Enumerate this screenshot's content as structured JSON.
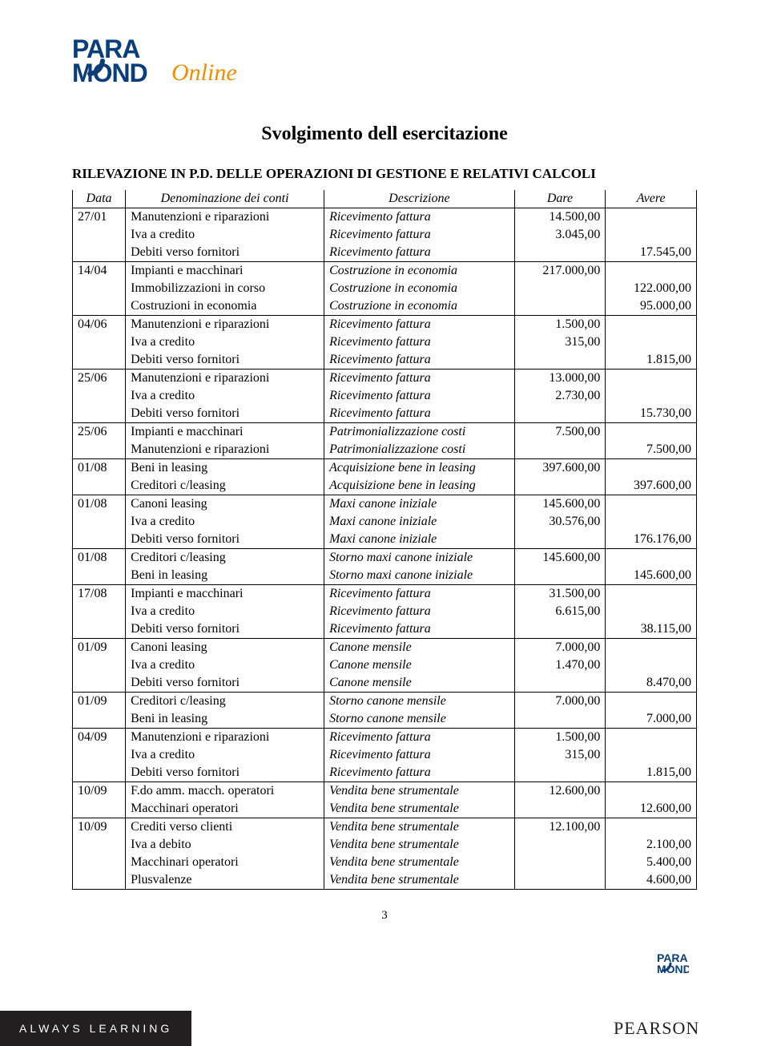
{
  "logo": {
    "line1": "PARA",
    "line2": "MOND",
    "suffix": "Online",
    "colors": {
      "blue": "#0a3e7a",
      "orange": "#f28c00"
    }
  },
  "title": "Svolgimento dell esercitazione",
  "subtitle": "RILEVAZIONE IN P.D. DELLE OPERAZIONI DI GESTIONE E RELATIVI CALCOLI",
  "columns": {
    "data": "Data",
    "denom": "Denominazione dei conti",
    "descr": "Descrizione",
    "dare": "Dare",
    "avere": "Avere"
  },
  "groups": [
    {
      "sep": true,
      "rows": [
        {
          "d": "27/01",
          "n": "Manutenzioni e riparazioni",
          "de": "Ricevimento fattura",
          "da": "14.500,00",
          "av": ""
        },
        {
          "d": "",
          "n": "Iva a credito",
          "de": "Ricevimento fattura",
          "da": "3.045,00",
          "av": ""
        },
        {
          "d": "",
          "n": "Debiti verso fornitori",
          "de": "Ricevimento fattura",
          "da": "",
          "av": "17.545,00"
        }
      ]
    },
    {
      "sep": true,
      "rows": [
        {
          "d": "14/04",
          "n": "Impianti e macchinari",
          "de": "Costruzione in economia",
          "da": "217.000,00",
          "av": ""
        },
        {
          "d": "",
          "n": "Immobilizzazioni in corso",
          "de": "Costruzione in economia",
          "da": "",
          "av": "122.000,00"
        },
        {
          "d": "",
          "n": "Costruzioni in economia",
          "de": "Costruzione in economia",
          "da": "",
          "av": "95.000,00"
        }
      ]
    },
    {
      "sep": true,
      "rows": [
        {
          "d": "04/06",
          "n": "Manutenzioni e riparazioni",
          "de": "Ricevimento fattura",
          "da": "1.500,00",
          "av": ""
        },
        {
          "d": "",
          "n": "Iva a credito",
          "de": "Ricevimento fattura",
          "da": "315,00",
          "av": ""
        },
        {
          "d": "",
          "n": "Debiti verso fornitori",
          "de": "Ricevimento fattura",
          "da": "",
          "av": "1.815,00"
        }
      ]
    },
    {
      "sep": true,
      "rows": [
        {
          "d": "25/06",
          "n": "Manutenzioni e riparazioni",
          "de": "Ricevimento fattura",
          "da": "13.000,00",
          "av": ""
        },
        {
          "d": "",
          "n": "Iva a credito",
          "de": "Ricevimento fattura",
          "da": "2.730,00",
          "av": ""
        },
        {
          "d": "",
          "n": "Debiti verso fornitori",
          "de": "Ricevimento fattura",
          "da": "",
          "av": "15.730,00"
        }
      ]
    },
    {
      "sep": true,
      "rows": [
        {
          "d": "25/06",
          "n": "Impianti e macchinari",
          "de": "Patrimonializzazione costi",
          "da": "7.500,00",
          "av": ""
        },
        {
          "d": "",
          "n": "Manutenzioni e riparazioni",
          "de": "Patrimonializzazione costi",
          "da": "",
          "av": "7.500,00"
        }
      ]
    },
    {
      "sep": true,
      "rows": [
        {
          "d": "01/08",
          "n": "Beni in leasing",
          "de": "Acquisizione bene in leasing",
          "da": "397.600,00",
          "av": ""
        },
        {
          "d": "",
          "n": "Creditori c/leasing",
          "de": "Acquisizione bene in leasing",
          "da": "",
          "av": "397.600,00"
        }
      ]
    },
    {
      "sep": true,
      "rows": [
        {
          "d": "01/08",
          "n": "Canoni leasing",
          "de": "Maxi canone iniziale",
          "da": "145.600,00",
          "av": ""
        },
        {
          "d": "",
          "n": "Iva a credito",
          "de": "Maxi canone iniziale",
          "da": "30.576,00",
          "av": ""
        },
        {
          "d": "",
          "n": "Debiti verso fornitori",
          "de": "Maxi canone iniziale",
          "da": "",
          "av": "176.176,00"
        }
      ]
    },
    {
      "sep": true,
      "rows": [
        {
          "d": "01/08",
          "n": "Creditori c/leasing",
          "de": "Storno maxi canone iniziale",
          "da": "145.600,00",
          "av": ""
        },
        {
          "d": "",
          "n": "Beni in leasing",
          "de": "Storno maxi canone iniziale",
          "da": "",
          "av": "145.600,00"
        }
      ]
    },
    {
      "sep": true,
      "rows": [
        {
          "d": "17/08",
          "n": "Impianti e macchinari",
          "de": "Ricevimento fattura",
          "da": "31.500,00",
          "av": ""
        },
        {
          "d": "",
          "n": "Iva a credito",
          "de": "Ricevimento fattura",
          "da": "6.615,00",
          "av": ""
        },
        {
          "d": "",
          "n": "Debiti verso fornitori",
          "de": "Ricevimento fattura",
          "da": "",
          "av": "38.115,00"
        }
      ]
    },
    {
      "sep": true,
      "rows": [
        {
          "d": "01/09",
          "n": "Canoni leasing",
          "de": "Canone mensile",
          "da": "7.000,00",
          "av": ""
        },
        {
          "d": "",
          "n": "Iva a credito",
          "de": "Canone mensile",
          "da": "1.470,00",
          "av": ""
        },
        {
          "d": "",
          "n": "Debiti verso fornitori",
          "de": "Canone mensile",
          "da": "",
          "av": "8.470,00"
        }
      ]
    },
    {
      "sep": true,
      "rows": [
        {
          "d": "01/09",
          "n": "Creditori c/leasing",
          "de": "Storno canone mensile",
          "da": "7.000,00",
          "av": ""
        },
        {
          "d": "",
          "n": "Beni in leasing",
          "de": "Storno canone mensile",
          "da": "",
          "av": "7.000,00"
        }
      ]
    },
    {
      "sep": true,
      "rows": [
        {
          "d": "04/09",
          "n": "Manutenzioni e riparazioni",
          "de": "Ricevimento fattura",
          "da": "1.500,00",
          "av": ""
        },
        {
          "d": "",
          "n": "Iva a credito",
          "de": "Ricevimento fattura",
          "da": "315,00",
          "av": ""
        },
        {
          "d": "",
          "n": "Debiti verso fornitori",
          "de": "Ricevimento fattura",
          "da": "",
          "av": "1.815,00"
        }
      ]
    },
    {
      "sep": true,
      "rows": [
        {
          "d": "10/09",
          "n": "F.do amm. macch. operatori",
          "de": "Vendita bene strumentale",
          "da": "12.600,00",
          "av": ""
        },
        {
          "d": "",
          "n": "Macchinari operatori",
          "de": "Vendita bene strumentale",
          "da": "",
          "av": "12.600,00"
        }
      ]
    },
    {
      "sep": true,
      "rows": [
        {
          "d": "10/09",
          "n": "Crediti verso clienti",
          "de": "Vendita bene strumentale",
          "da": "12.100,00",
          "av": ""
        },
        {
          "d": "",
          "n": "Iva a debito",
          "de": "Vendita bene strumentale",
          "da": "",
          "av": "2.100,00"
        },
        {
          "d": "",
          "n": "Macchinari operatori",
          "de": "Vendita bene strumentale",
          "da": "",
          "av": "5.400,00"
        },
        {
          "d": "",
          "n": "Plusvalenze",
          "de": "Vendita bene strumentale",
          "da": "",
          "av": "4.600,00"
        }
      ]
    }
  ],
  "page_num": "3",
  "footer": {
    "left": "ALWAYS LEARNING",
    "right": "PEARSON"
  },
  "styles": {
    "title_fontsize": 24,
    "body_fontsize": 16,
    "text_color": "#000000",
    "background_color": "#ffffff",
    "footer_bg": "#231f20",
    "footer_text": "#ffffff"
  }
}
